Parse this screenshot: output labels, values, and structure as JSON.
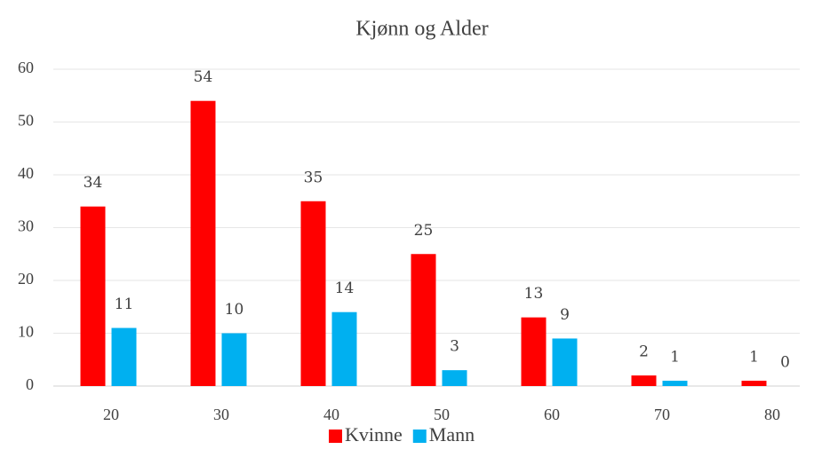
{
  "chart_data": {
    "type": "bar",
    "title": "Kjønn og Alder",
    "categories": [
      "20",
      "30",
      "40",
      "50",
      "60",
      "70",
      "80"
    ],
    "series": [
      {
        "name": "Kvinne",
        "color": "#ff0000",
        "values": [
          34,
          54,
          35,
          25,
          13,
          2,
          1
        ]
      },
      {
        "name": "Mann",
        "color": "#00b0f0",
        "values": [
          11,
          10,
          14,
          3,
          9,
          1,
          0
        ]
      }
    ],
    "ylim": [
      0,
      60
    ],
    "yticks": [
      0,
      10,
      20,
      30,
      40,
      50,
      60
    ],
    "grid": true,
    "legend": "bottom"
  }
}
